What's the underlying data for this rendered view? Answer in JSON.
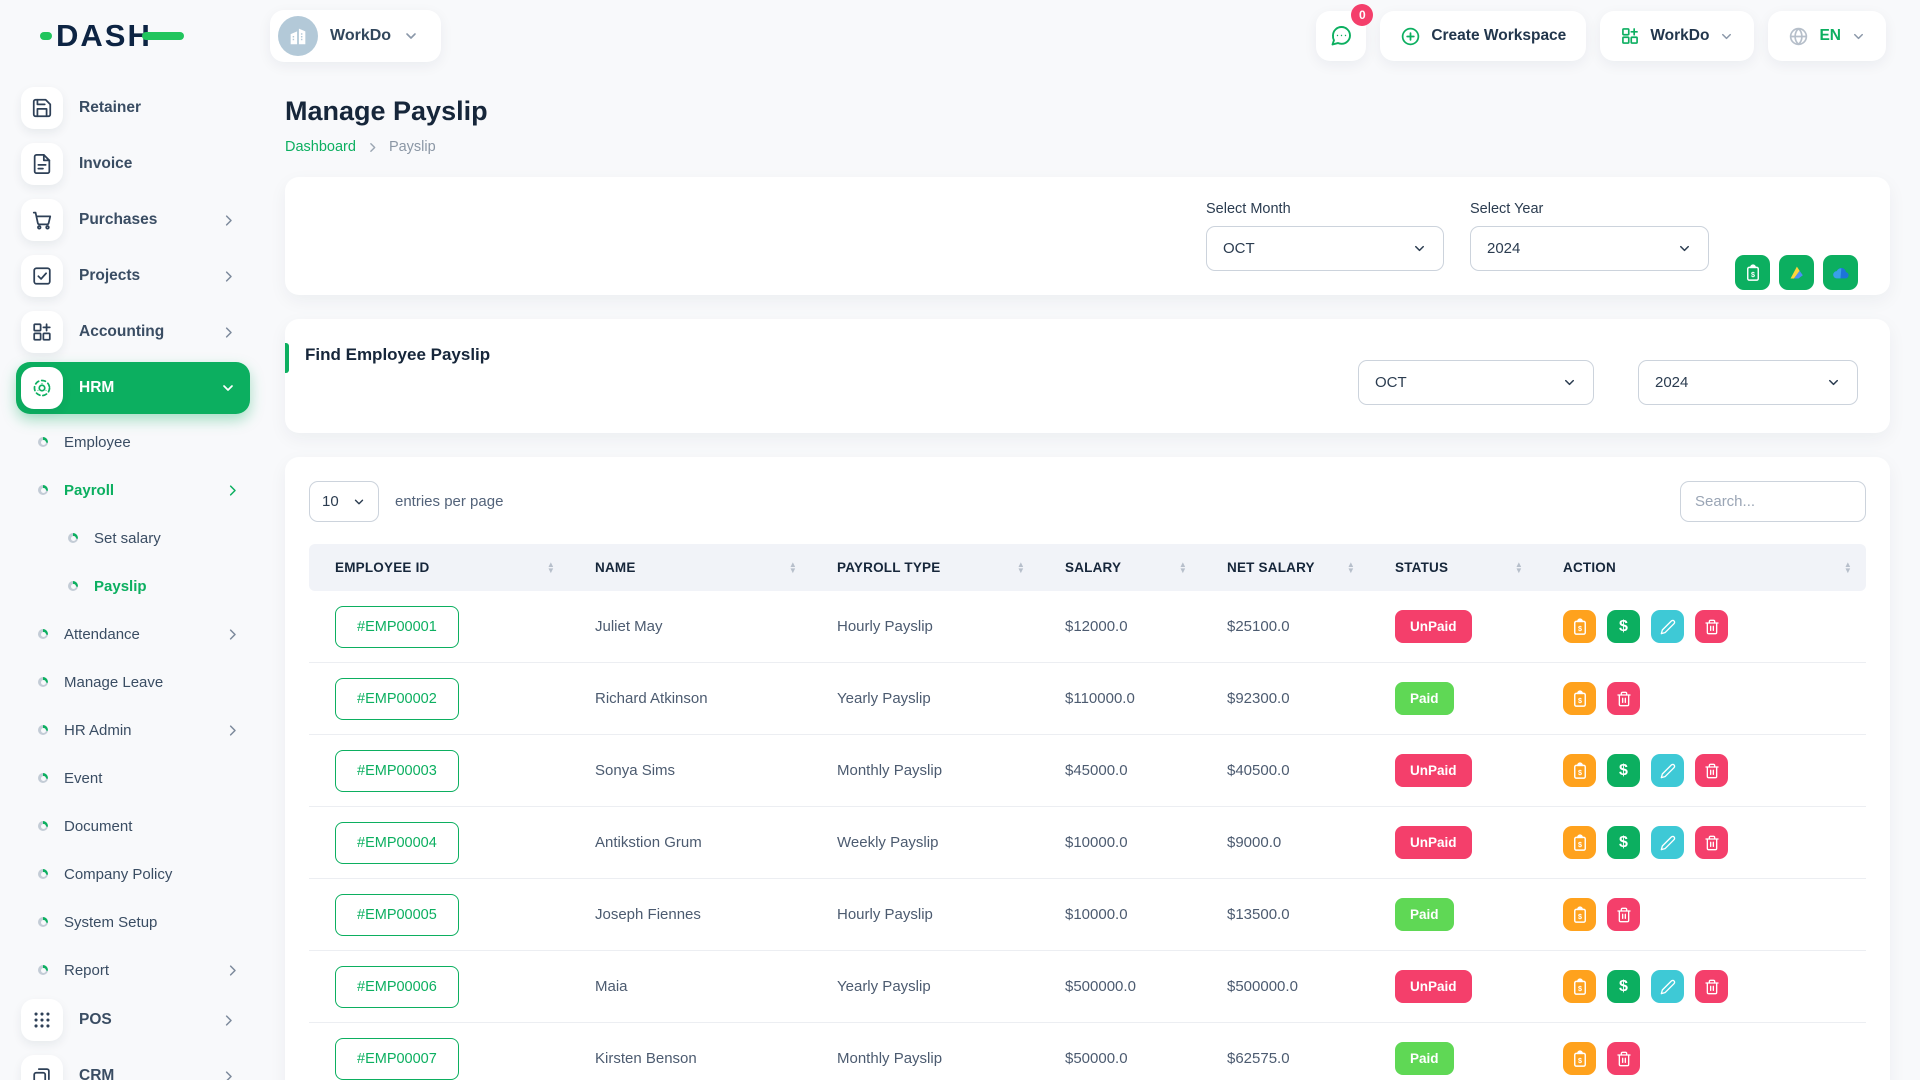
{
  "brand": {
    "logo_text": "DASH"
  },
  "topbar": {
    "workspace_chip": {
      "label": "WorkDo",
      "avatar_icon": "building-icon"
    },
    "messages_badge": "0",
    "create_workspace_label": "Create Workspace",
    "workspace_menu_label": "WorkDo",
    "language": "EN"
  },
  "sidebar": {
    "items": [
      {
        "label": "Retainer",
        "icon": "save-icon",
        "chevron": false,
        "active": false
      },
      {
        "label": "Invoice",
        "icon": "invoice-icon",
        "chevron": false,
        "active": false
      },
      {
        "label": "Purchases",
        "icon": "cart-icon",
        "chevron": true,
        "active": false
      },
      {
        "label": "Projects",
        "icon": "check-square-icon",
        "chevron": true,
        "active": false
      },
      {
        "label": "Accounting",
        "icon": "grid-plus-icon",
        "chevron": true,
        "active": false
      },
      {
        "label": "HRM",
        "icon": "hrm-icon",
        "chevron": true,
        "active": true
      }
    ],
    "hrm_children": [
      {
        "label": "Employee",
        "indent": false,
        "chevron": false,
        "active": false
      },
      {
        "label": "Payroll",
        "indent": false,
        "chevron": true,
        "active": true
      },
      {
        "label": "Set salary",
        "indent": true,
        "chevron": false,
        "active": false
      },
      {
        "label": "Payslip",
        "indent": true,
        "chevron": false,
        "active": true
      },
      {
        "label": "Attendance",
        "indent": false,
        "chevron": true,
        "active": false
      },
      {
        "label": "Manage Leave",
        "indent": false,
        "chevron": false,
        "active": false
      },
      {
        "label": "HR Admin",
        "indent": false,
        "chevron": true,
        "active": false
      },
      {
        "label": "Event",
        "indent": false,
        "chevron": false,
        "active": false
      },
      {
        "label": "Document",
        "indent": false,
        "chevron": false,
        "active": false
      },
      {
        "label": "Company Policy",
        "indent": false,
        "chevron": false,
        "active": false
      },
      {
        "label": "System Setup",
        "indent": false,
        "chevron": false,
        "active": false
      },
      {
        "label": "Report",
        "indent": false,
        "chevron": true,
        "active": false
      }
    ],
    "bottom_items": [
      {
        "label": "POS",
        "icon": "dots-grid-icon",
        "chevron": true,
        "active": false
      },
      {
        "label": "CRM",
        "icon": "crm-icon",
        "chevron": true,
        "active": false
      }
    ]
  },
  "page": {
    "title": "Manage Payslip",
    "breadcrumb": {
      "home": "Dashboard",
      "current": "Payslip"
    }
  },
  "filter_card": {
    "month_label": "Select Month",
    "month_value": "OCT",
    "year_label": "Select Year",
    "year_value": "2024",
    "export_buttons": [
      {
        "name": "bulk-payslip-button",
        "icon": "clipboard-dollar-icon"
      },
      {
        "name": "google-drive-export-button",
        "icon": "drive-icon"
      },
      {
        "name": "onedrive-export-button",
        "icon": "cloud-icon"
      }
    ]
  },
  "find_card": {
    "title": "Find Employee Payslip",
    "month_value": "OCT",
    "year_value": "2024"
  },
  "table": {
    "entries_value": "10",
    "entries_label": "entries per page",
    "search_placeholder": "Search...",
    "columns": [
      "EMPLOYEE ID",
      "NAME",
      "PAYROLL TYPE",
      "SALARY",
      "NET SALARY",
      "STATUS",
      "ACTION"
    ],
    "rows": [
      {
        "id": "#EMP00001",
        "name": "Juliet May",
        "payroll_type": "Hourly Payslip",
        "salary": "$12000.0",
        "net_salary": "$25100.0",
        "status": "UnPaid",
        "actions": [
          "payslip",
          "pay",
          "edit",
          "delete"
        ]
      },
      {
        "id": "#EMP00002",
        "name": "Richard Atkinson",
        "payroll_type": "Yearly Payslip",
        "salary": "$110000.0",
        "net_salary": "$92300.0",
        "status": "Paid",
        "actions": [
          "payslip",
          "delete"
        ]
      },
      {
        "id": "#EMP00003",
        "name": "Sonya Sims",
        "payroll_type": "Monthly Payslip",
        "salary": "$45000.0",
        "net_salary": "$40500.0",
        "status": "UnPaid",
        "actions": [
          "payslip",
          "pay",
          "edit",
          "delete"
        ]
      },
      {
        "id": "#EMP00004",
        "name": "Antikstion Grum",
        "payroll_type": "Weekly Payslip",
        "salary": "$10000.0",
        "net_salary": "$9000.0",
        "status": "UnPaid",
        "actions": [
          "payslip",
          "pay",
          "edit",
          "delete"
        ]
      },
      {
        "id": "#EMP00005",
        "name": "Joseph Fiennes",
        "payroll_type": "Hourly Payslip",
        "salary": "$10000.0",
        "net_salary": "$13500.0",
        "status": "Paid",
        "actions": [
          "payslip",
          "delete"
        ]
      },
      {
        "id": "#EMP00006",
        "name": "Maia",
        "payroll_type": "Yearly Payslip",
        "salary": "$500000.0",
        "net_salary": "$500000.0",
        "status": "UnPaid",
        "actions": [
          "payslip",
          "pay",
          "edit",
          "delete"
        ]
      },
      {
        "id": "#EMP00007",
        "name": "Kirsten Benson",
        "payroll_type": "Monthly Payslip",
        "salary": "$50000.0",
        "net_salary": "$62575.0",
        "status": "Paid",
        "actions": [
          "payslip",
          "delete"
        ]
      }
    ]
  },
  "colors": {
    "primary": "#0caf60",
    "paid": "#5fd855",
    "unpaid": "#f43f6b",
    "action_colors": {
      "payslip": "#ffa21d",
      "pay": "#0caf60",
      "edit": "#3ec9d6",
      "delete": "#f43f6b"
    }
  }
}
